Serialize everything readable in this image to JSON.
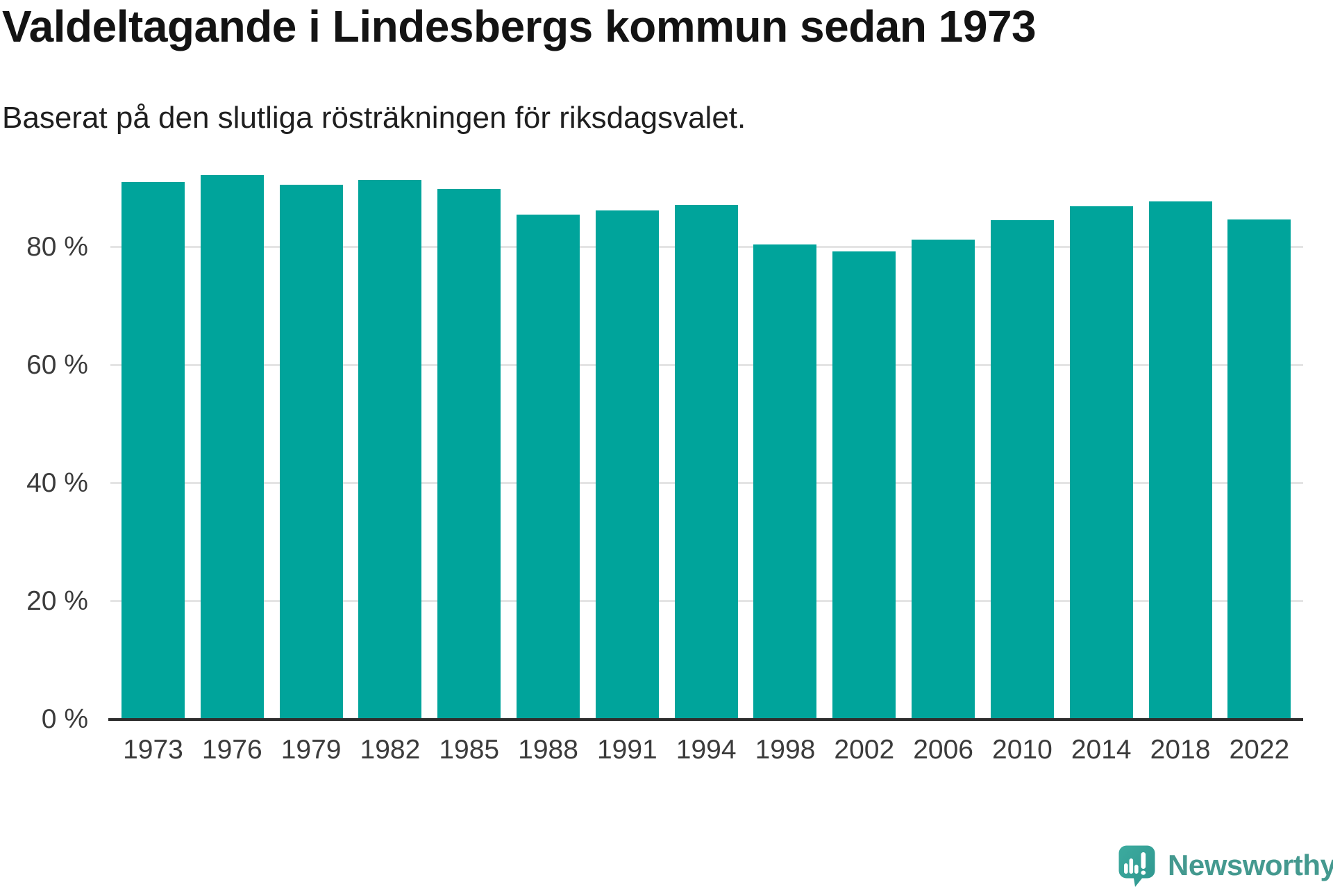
{
  "chart_data": {
    "type": "bar",
    "title": "Valdeltagande i Lindesbergs kommun sedan 1973",
    "subtitle": "Baserat på den slutliga rösträkningen för riksdagsvalet.",
    "categories": [
      "1973",
      "1976",
      "1979",
      "1982",
      "1985",
      "1988",
      "1991",
      "1994",
      "1998",
      "2002",
      "2006",
      "2010",
      "2014",
      "2018",
      "2022"
    ],
    "values": [
      91.0,
      92.2,
      90.6,
      91.4,
      89.8,
      85.5,
      86.2,
      87.1,
      80.4,
      79.3,
      81.3,
      84.6,
      86.9,
      87.7,
      84.7
    ],
    "unit": "%",
    "ylim": [
      0,
      100
    ],
    "yticks": [
      {
        "value": 0,
        "label": "0 %"
      },
      {
        "value": 20,
        "label": "20 %"
      },
      {
        "value": 40,
        "label": "40 %"
      },
      {
        "value": 60,
        "label": "60 %"
      },
      {
        "value": 80,
        "label": "80 %"
      }
    ],
    "grid": "horizontal",
    "legend": "none",
    "bar_color": "#00a49b",
    "axis_color": "#2e2e2e",
    "gridline_color": "#e4e4e4",
    "label_color": "#3b3b3b"
  },
  "branding": {
    "logo_text": "Newsworthy",
    "logo_text_color": "#44998f",
    "logo_mark_color": "#38a69c"
  }
}
